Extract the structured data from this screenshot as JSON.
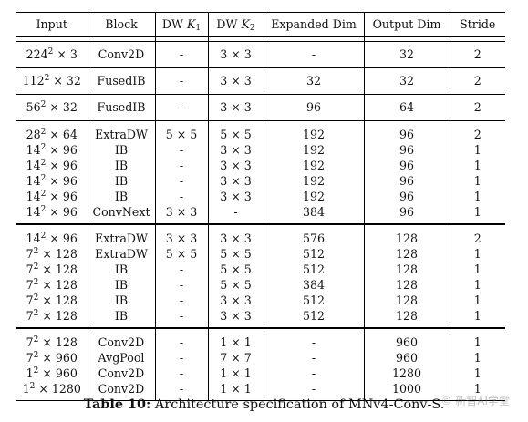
{
  "headers": {
    "input": "Input",
    "block": "Block",
    "dw_k1_prefix": "DW ",
    "dw_k1_var": "K",
    "dw_k1_sub": "1",
    "dw_k2_prefix": "DW ",
    "dw_k2_var": "K",
    "dw_k2_sub": "2",
    "expanded": "Expanded Dim",
    "output": "Output Dim",
    "stride": "Stride"
  },
  "groups": [
    {
      "rows": [
        {
          "in_base": "224",
          "in_exp": "2",
          "in_rest": " × 3",
          "block": "Conv2D",
          "k1": "-",
          "k2": "3 × 3",
          "exp": "-",
          "out": "32",
          "stride": "2"
        }
      ]
    },
    {
      "rows": [
        {
          "in_base": "112",
          "in_exp": "2",
          "in_rest": " × 32",
          "block": "FusedIB",
          "k1": "-",
          "k2": "3 × 3",
          "exp": "32",
          "out": "32",
          "stride": "2"
        }
      ]
    },
    {
      "rows": [
        {
          "in_base": "56",
          "in_exp": "2",
          "in_rest": " × 32",
          "block": "FusedIB",
          "k1": "-",
          "k2": "3 × 3",
          "exp": "96",
          "out": "64",
          "stride": "2"
        }
      ]
    },
    {
      "rows": [
        {
          "in_base": "28",
          "in_exp": "2",
          "in_rest": " × 64",
          "block": "ExtraDW",
          "k1": "5 × 5",
          "k2": "5 × 5",
          "exp": "192",
          "out": "96",
          "stride": "2"
        },
        {
          "in_base": "14",
          "in_exp": "2",
          "in_rest": " × 96",
          "block": "IB",
          "k1": "-",
          "k2": "3 × 3",
          "exp": "192",
          "out": "96",
          "stride": "1"
        },
        {
          "in_base": "14",
          "in_exp": "2",
          "in_rest": " × 96",
          "block": "IB",
          "k1": "-",
          "k2": "3 × 3",
          "exp": "192",
          "out": "96",
          "stride": "1"
        },
        {
          "in_base": "14",
          "in_exp": "2",
          "in_rest": " × 96",
          "block": "IB",
          "k1": "-",
          "k2": "3 × 3",
          "exp": "192",
          "out": "96",
          "stride": "1"
        },
        {
          "in_base": "14",
          "in_exp": "2",
          "in_rest": " × 96",
          "block": "IB",
          "k1": "-",
          "k2": "3 × 3",
          "exp": "192",
          "out": "96",
          "stride": "1"
        },
        {
          "in_base": "14",
          "in_exp": "2",
          "in_rest": " × 96",
          "block": "ConvNext",
          "k1": "3 × 3",
          "k2": "-",
          "exp": "384",
          "out": "96",
          "stride": "1"
        }
      ]
    },
    {
      "rows": [
        {
          "in_base": "14",
          "in_exp": "2",
          "in_rest": " × 96",
          "block": "ExtraDW",
          "k1": "3 × 3",
          "k2": "3 × 3",
          "exp": "576",
          "out": "128",
          "stride": "2"
        },
        {
          "in_base": "7",
          "in_exp": "2",
          "in_rest": " × 128",
          "block": "ExtraDW",
          "k1": "5 × 5",
          "k2": "5 × 5",
          "exp": "512",
          "out": "128",
          "stride": "1"
        },
        {
          "in_base": "7",
          "in_exp": "2",
          "in_rest": " × 128",
          "block": "IB",
          "k1": "-",
          "k2": "5 × 5",
          "exp": "512",
          "out": "128",
          "stride": "1"
        },
        {
          "in_base": "7",
          "in_exp": "2",
          "in_rest": " × 128",
          "block": "IB",
          "k1": "-",
          "k2": "5 × 5",
          "exp": "384",
          "out": "128",
          "stride": "1"
        },
        {
          "in_base": "7",
          "in_exp": "2",
          "in_rest": " × 128",
          "block": "IB",
          "k1": "-",
          "k2": "3 × 3",
          "exp": "512",
          "out": "128",
          "stride": "1"
        },
        {
          "in_base": "7",
          "in_exp": "2",
          "in_rest": " × 128",
          "block": "IB",
          "k1": "-",
          "k2": "3 × 3",
          "exp": "512",
          "out": "128",
          "stride": "1"
        }
      ]
    },
    {
      "rows": [
        {
          "in_base": "7",
          "in_exp": "2",
          "in_rest": " × 128",
          "block": "Conv2D",
          "k1": "-",
          "k2": "1 × 1",
          "exp": "-",
          "out": "960",
          "stride": "1"
        },
        {
          "in_base": "7",
          "in_exp": "2",
          "in_rest": " × 960",
          "block": "AvgPool",
          "k1": "-",
          "k2": "7 × 7",
          "exp": "-",
          "out": "960",
          "stride": "1"
        },
        {
          "in_base": "1",
          "in_exp": "2",
          "in_rest": " × 960",
          "block": "Conv2D",
          "k1": "-",
          "k2": "1 × 1",
          "exp": "-",
          "out": "1280",
          "stride": "1"
        },
        {
          "in_base": "1",
          "in_exp": "2",
          "in_rest": " × 1280",
          "block": "Conv2D",
          "k1": "-",
          "k2": "1 × 1",
          "exp": "-",
          "out": "1000",
          "stride": "1"
        }
      ]
    }
  ],
  "caption": {
    "label": "Table 10:",
    "text": " Architecture specification of MNv4-Conv-S."
  },
  "watermark": "© 新智AI学堂"
}
